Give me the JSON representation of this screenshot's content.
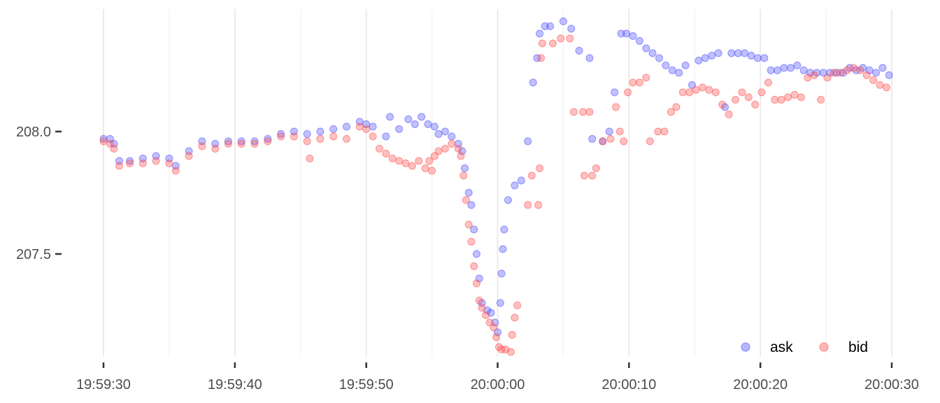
{
  "chart_data": {
    "type": "scatter",
    "title": "",
    "xlabel": "",
    "ylabel": "",
    "x_unit": "seconds relative to 20:00:00",
    "xlim": [
      -30,
      30
    ],
    "ylim": [
      207.08,
      208.5
    ],
    "x_ticks": [
      {
        "value": -30,
        "label": "19:59:30"
      },
      {
        "value": -20,
        "label": "19:59:40"
      },
      {
        "value": -10,
        "label": "19:59:50"
      },
      {
        "value": 0,
        "label": "20:00:00"
      },
      {
        "value": 10,
        "label": "20:00:10"
      },
      {
        "value": 20,
        "label": "20:00:20"
      },
      {
        "value": 30,
        "label": "20:00:30"
      }
    ],
    "y_ticks": [
      {
        "value": 207.5,
        "label": "207.5"
      },
      {
        "value": 208.0,
        "label": "208.0"
      }
    ],
    "grid": "vertical",
    "legend": {
      "position": "bottom-right",
      "entries": [
        "ask",
        "bid"
      ]
    },
    "series": [
      {
        "name": "ask",
        "color": "#4b4bff",
        "points": [
          [
            -30,
            207.97
          ],
          [
            -29.5,
            207.97
          ],
          [
            -29.2,
            207.95
          ],
          [
            -28.8,
            207.88
          ],
          [
            -28,
            207.88
          ],
          [
            -27,
            207.89
          ],
          [
            -26,
            207.9
          ],
          [
            -25,
            207.89
          ],
          [
            -24.5,
            207.86
          ],
          [
            -23.5,
            207.92
          ],
          [
            -22.5,
            207.96
          ],
          [
            -21.5,
            207.95
          ],
          [
            -20.5,
            207.96
          ],
          [
            -19.5,
            207.96
          ],
          [
            -18.5,
            207.96
          ],
          [
            -17.5,
            207.97
          ],
          [
            -16.5,
            207.99
          ],
          [
            -15.5,
            208.0
          ],
          [
            -14.5,
            207.99
          ],
          [
            -13.5,
            208.0
          ],
          [
            -12.5,
            208.01
          ],
          [
            -11.5,
            208.02
          ],
          [
            -10.5,
            208.04
          ],
          [
            -10,
            208.03
          ],
          [
            -9.5,
            208.02
          ],
          [
            -8.5,
            207.98
          ],
          [
            -8.2,
            208.06
          ],
          [
            -7.5,
            208.01
          ],
          [
            -6.8,
            208.05
          ],
          [
            -6.3,
            208.03
          ],
          [
            -5.8,
            208.06
          ],
          [
            -5.3,
            208.03
          ],
          [
            -4.8,
            208.02
          ],
          [
            -4.5,
            207.99
          ],
          [
            -4,
            208.0
          ],
          [
            -3.5,
            207.98
          ],
          [
            -3,
            207.95
          ],
          [
            -2.7,
            207.92
          ],
          [
            -2.5,
            207.85
          ],
          [
            -2.2,
            207.75
          ],
          [
            -2,
            207.7
          ],
          [
            -1.8,
            207.6
          ],
          [
            -1.6,
            207.5
          ],
          [
            -1.4,
            207.4
          ],
          [
            -1.2,
            207.3
          ],
          [
            -0.8,
            207.27
          ],
          [
            -0.5,
            207.26
          ],
          [
            -0.2,
            207.22
          ],
          [
            0,
            207.18
          ],
          [
            0.2,
            207.3
          ],
          [
            0.3,
            207.42
          ],
          [
            0.4,
            207.52
          ],
          [
            0.5,
            207.6
          ],
          [
            0.8,
            207.72
          ],
          [
            1.3,
            207.78
          ],
          [
            1.8,
            207.8
          ],
          [
            2.3,
            207.96
          ],
          [
            2.7,
            208.2
          ],
          [
            3,
            208.3
          ],
          [
            3.2,
            208.4
          ],
          [
            3.6,
            208.43
          ],
          [
            4,
            208.43
          ],
          [
            5,
            208.45
          ],
          [
            5.6,
            208.42
          ],
          [
            6.2,
            208.33
          ],
          [
            7,
            208.3
          ],
          [
            7.2,
            207.97
          ],
          [
            8,
            207.96
          ],
          [
            8.5,
            208.0
          ],
          [
            8.9,
            208.16
          ],
          [
            9.4,
            208.4
          ],
          [
            9.8,
            208.4
          ],
          [
            10.3,
            208.39
          ],
          [
            10.8,
            208.37
          ],
          [
            11.3,
            208.34
          ],
          [
            11.8,
            208.32
          ],
          [
            12.3,
            208.3
          ],
          [
            12.8,
            208.27
          ],
          [
            13.3,
            208.25
          ],
          [
            13.8,
            208.24
          ],
          [
            14.3,
            208.27
          ],
          [
            14.8,
            208.19
          ],
          [
            15.3,
            208.29
          ],
          [
            15.8,
            208.3
          ],
          [
            16.3,
            208.31
          ],
          [
            16.8,
            208.32
          ],
          [
            17.3,
            208.1
          ],
          [
            17.8,
            208.32
          ],
          [
            18.3,
            208.32
          ],
          [
            18.8,
            208.32
          ],
          [
            19.3,
            208.31
          ],
          [
            19.8,
            208.3
          ],
          [
            20.3,
            208.3
          ],
          [
            20.8,
            208.25
          ],
          [
            21.3,
            208.25
          ],
          [
            21.8,
            208.26
          ],
          [
            22.3,
            208.26
          ],
          [
            22.8,
            208.27
          ],
          [
            23.3,
            208.25
          ],
          [
            23.8,
            208.24
          ],
          [
            24.3,
            208.24
          ],
          [
            24.8,
            208.24
          ],
          [
            25.3,
            208.24
          ],
          [
            25.8,
            208.24
          ],
          [
            26.3,
            208.24
          ],
          [
            26.8,
            208.26
          ],
          [
            27.3,
            208.25
          ],
          [
            27.8,
            208.26
          ],
          [
            28.3,
            208.25
          ],
          [
            28.8,
            208.24
          ],
          [
            29.3,
            208.26
          ],
          [
            29.8,
            208.23
          ]
        ]
      },
      {
        "name": "bid",
        "color": "#ff4b4b",
        "points": [
          [
            -30,
            207.96
          ],
          [
            -29.5,
            207.95
          ],
          [
            -29.2,
            207.93
          ],
          [
            -28.8,
            207.86
          ],
          [
            -28,
            207.87
          ],
          [
            -27,
            207.87
          ],
          [
            -26,
            207.88
          ],
          [
            -25,
            207.87
          ],
          [
            -24.5,
            207.84
          ],
          [
            -23.5,
            207.9
          ],
          [
            -22.5,
            207.94
          ],
          [
            -21.5,
            207.93
          ],
          [
            -20.5,
            207.95
          ],
          [
            -19.5,
            207.95
          ],
          [
            -18.5,
            207.95
          ],
          [
            -17.5,
            207.96
          ],
          [
            -16.5,
            207.98
          ],
          [
            -15.5,
            207.98
          ],
          [
            -14.5,
            207.96
          ],
          [
            -14.3,
            207.89
          ],
          [
            -13.5,
            207.97
          ],
          [
            -12.5,
            207.98
          ],
          [
            -11.5,
            207.97
          ],
          [
            -10.5,
            208.02
          ],
          [
            -10,
            208.01
          ],
          [
            -9.5,
            207.98
          ],
          [
            -9,
            207.93
          ],
          [
            -8.5,
            207.91
          ],
          [
            -8,
            207.89
          ],
          [
            -7.5,
            207.88
          ],
          [
            -7,
            207.87
          ],
          [
            -6.5,
            207.86
          ],
          [
            -6,
            207.88
          ],
          [
            -5.5,
            207.85
          ],
          [
            -5.2,
            207.88
          ],
          [
            -5,
            207.84
          ],
          [
            -4.8,
            207.9
          ],
          [
            -4.5,
            207.92
          ],
          [
            -4,
            207.93
          ],
          [
            -3.5,
            207.95
          ],
          [
            -3,
            207.93
          ],
          [
            -2.8,
            207.9
          ],
          [
            -2.6,
            207.82
          ],
          [
            -2.4,
            207.72
          ],
          [
            -2.2,
            207.62
          ],
          [
            -2,
            207.55
          ],
          [
            -1.8,
            207.45
          ],
          [
            -1.6,
            207.38
          ],
          [
            -1.4,
            207.31
          ],
          [
            -1.2,
            207.28
          ],
          [
            -0.9,
            207.25
          ],
          [
            -0.6,
            207.22
          ],
          [
            -0.3,
            207.2
          ],
          [
            -0.1,
            207.16
          ],
          [
            0.1,
            207.12
          ],
          [
            0.3,
            207.11
          ],
          [
            0.6,
            207.11
          ],
          [
            1,
            207.1
          ],
          [
            1.1,
            207.17
          ],
          [
            1.3,
            207.24
          ],
          [
            1.5,
            207.29
          ],
          [
            2.3,
            207.7
          ],
          [
            2.6,
            207.82
          ],
          [
            3.1,
            207.7
          ],
          [
            3.2,
            207.85
          ],
          [
            3.3,
            208.3
          ],
          [
            3.4,
            208.36
          ],
          [
            4.2,
            208.36
          ],
          [
            4.8,
            208.38
          ],
          [
            5.5,
            208.38
          ],
          [
            5.8,
            208.08
          ],
          [
            6.5,
            208.08
          ],
          [
            7,
            208.08
          ],
          [
            6.6,
            207.82
          ],
          [
            7.2,
            207.82
          ],
          [
            7.5,
            207.85
          ],
          [
            8,
            207.96
          ],
          [
            8.6,
            207.97
          ],
          [
            9,
            208.1
          ],
          [
            9.3,
            208.0
          ],
          [
            9.6,
            207.96
          ],
          [
            9.9,
            208.16
          ],
          [
            10.3,
            208.2
          ],
          [
            10.8,
            208.2
          ],
          [
            11.3,
            208.22
          ],
          [
            11.6,
            207.96
          ],
          [
            12.2,
            208.0
          ],
          [
            12.7,
            208.0
          ],
          [
            13.2,
            208.08
          ],
          [
            13.6,
            208.1
          ],
          [
            14.1,
            208.16
          ],
          [
            14.6,
            208.16
          ],
          [
            15.1,
            208.17
          ],
          [
            15.6,
            208.18
          ],
          [
            16.1,
            208.17
          ],
          [
            16.6,
            208.16
          ],
          [
            17.1,
            208.11
          ],
          [
            17.6,
            208.07
          ],
          [
            18.1,
            208.13
          ],
          [
            18.6,
            208.16
          ],
          [
            19.1,
            208.14
          ],
          [
            19.6,
            208.11
          ],
          [
            20.1,
            208.16
          ],
          [
            20.6,
            208.2
          ],
          [
            21.1,
            208.13
          ],
          [
            21.6,
            208.13
          ],
          [
            22.1,
            208.14
          ],
          [
            22.6,
            208.15
          ],
          [
            23.1,
            208.14
          ],
          [
            23.6,
            208.22
          ],
          [
            24.1,
            208.23
          ],
          [
            24.6,
            208.13
          ],
          [
            25.1,
            208.22
          ],
          [
            25.6,
            208.24
          ],
          [
            26.1,
            208.24
          ],
          [
            26.6,
            208.25
          ],
          [
            27.1,
            208.26
          ],
          [
            27.6,
            208.25
          ],
          [
            28.1,
            208.23
          ],
          [
            28.6,
            208.21
          ],
          [
            29.1,
            208.19
          ],
          [
            29.6,
            208.18
          ]
        ]
      }
    ]
  }
}
